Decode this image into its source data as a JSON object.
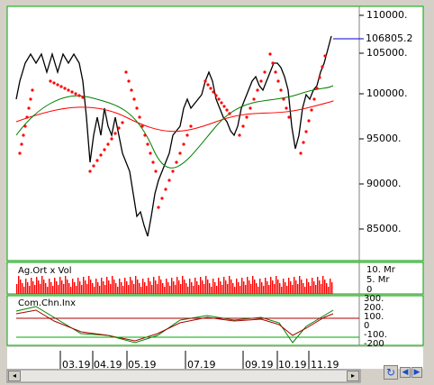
{
  "price_axis": [
    "110000.",
    "105000.",
    "100000.",
    "95000.",
    "90000.",
    "85000."
  ],
  "last_price": "106805.2",
  "volume_panel": {
    "title": "Ag.Ort x Vol",
    "ticks": [
      "10. Mr",
      "5. Mr",
      "0"
    ]
  },
  "cci_panel": {
    "title": "Com.Chn.Inx",
    "ticks": [
      "300.",
      "200.",
      "100.",
      "0",
      "-100.",
      "-200"
    ]
  },
  "dates": [
    "03.19",
    "04.19",
    "05.19",
    "07.19",
    "09.19",
    "10.19",
    "11.19"
  ],
  "colors": {
    "price": "#000000",
    "sar": "#ff0000",
    "ma_long": "#ff0000",
    "ma_short": "#008000",
    "frame_green": "#00aa00",
    "last_line": "#0000cc"
  },
  "icons": {
    "refresh": "refresh-icon",
    "left": "left-arrow-icon",
    "right": "right-arrow-icon"
  }
}
